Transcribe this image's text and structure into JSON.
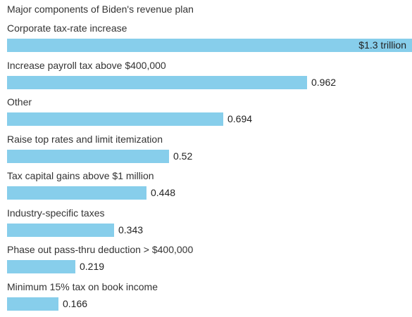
{
  "chart_data": {
    "type": "bar",
    "orientation": "horizontal",
    "title": "Major components of Biden's revenue plan",
    "categories": [
      "Corporate tax-rate increase",
      "Increase payroll tax above $400,000",
      "Other",
      "Raise top rates and limit itemization",
      "Tax capital gains above $1 million",
      "Industry-specific taxes",
      "Phase out pass-thru deduction > $400,000",
      "Minimum 15% tax on book income"
    ],
    "values": [
      1.3,
      0.962,
      0.694,
      0.52,
      0.448,
      0.343,
      0.219,
      0.166
    ],
    "value_labels": [
      "$1.3 trillion",
      "0.962",
      "0.694",
      "0.52",
      "0.448",
      "0.343",
      "0.219",
      "0.166"
    ],
    "xlim": [
      0,
      1.3
    ],
    "grid": false,
    "colors": {
      "bar": "#87CEEB",
      "text": "#333333"
    }
  }
}
